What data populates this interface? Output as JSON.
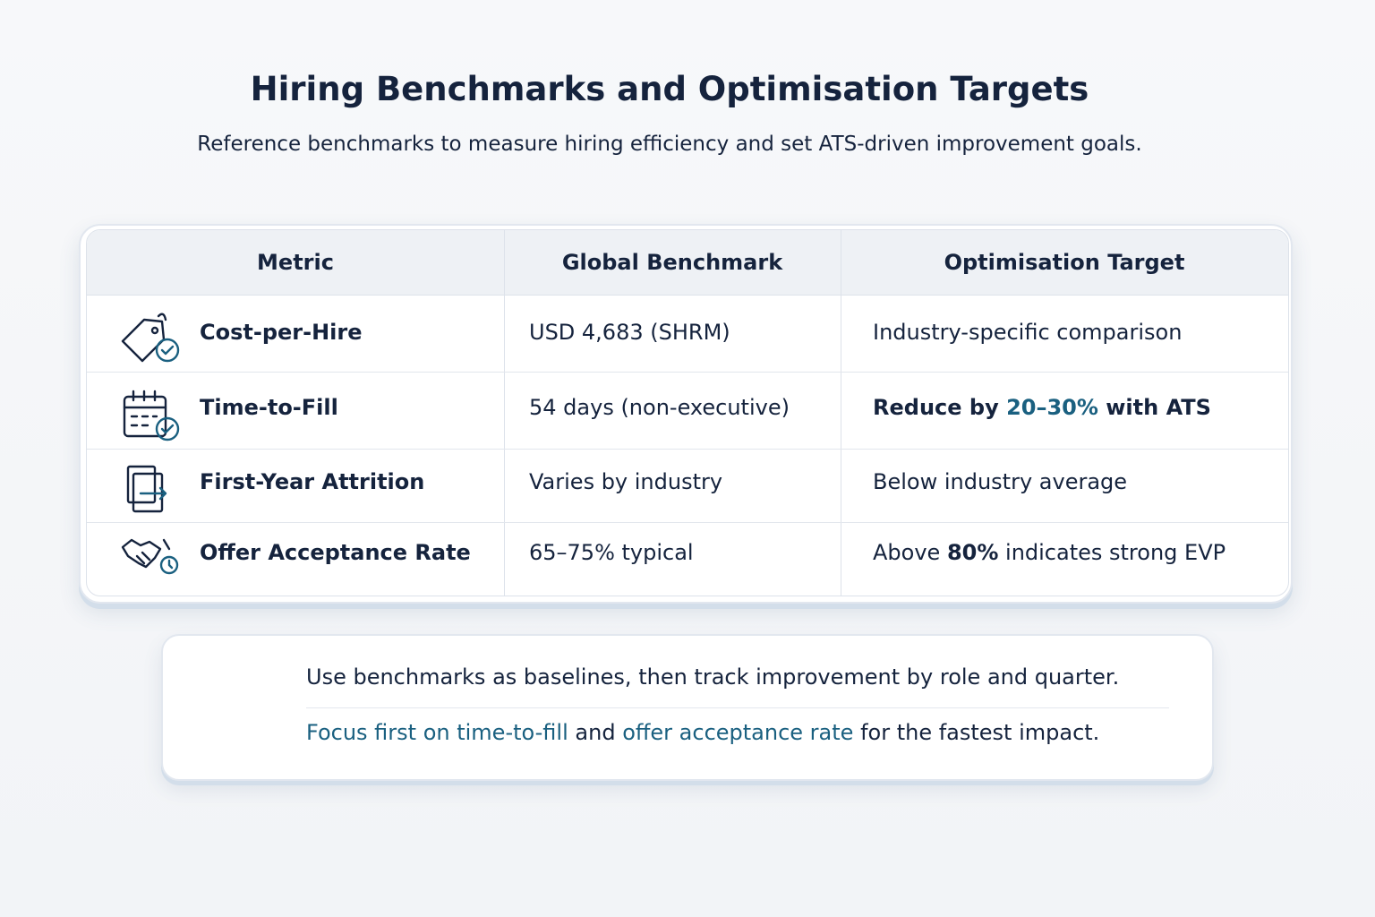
{
  "header": {
    "title": "Hiring Benchmarks and Optimisation Targets",
    "subtitle": "Reference benchmarks to measure hiring efficiency and set ATS-driven improvement goals."
  },
  "table": {
    "columns": [
      "Metric",
      "Global Benchmark",
      "Optimisation Target"
    ],
    "rows": [
      {
        "metric": "Cost-per-Hire",
        "benchmark": "USD 4,683 (SHRM)",
        "target": [
          "Industry-specific comparison"
        ]
      },
      {
        "metric": "Time-to-Fill",
        "benchmark": "54 days (non-executive)",
        "target": [
          "Reduce by ",
          "20–30%",
          " with ATS"
        ]
      },
      {
        "metric": "First-Year Attrition",
        "benchmark": "Varies by industry",
        "target": [
          "Below industry average"
        ]
      },
      {
        "metric": "Offer Acceptance Rate",
        "benchmark": "65–75% typical",
        "target": [
          "Above ",
          "80%",
          " indicates strong EVP"
        ]
      }
    ]
  },
  "note": {
    "line1": "Use benchmarks as baselines, then track improvement by role and quarter.",
    "line2": [
      "Focus first on time-to-fill",
      " and ",
      "offer acceptance rate",
      " for the fastest impact."
    ]
  }
}
